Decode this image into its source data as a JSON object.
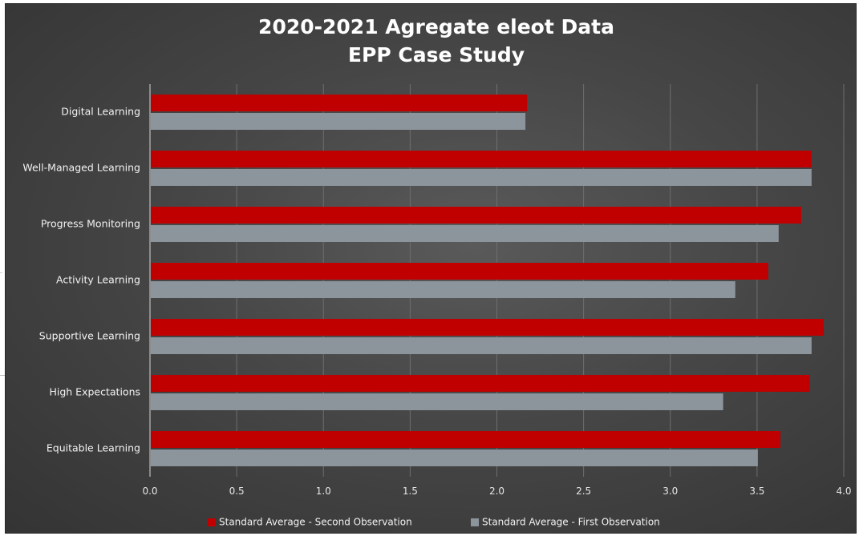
{
  "chart_data": {
    "type": "bar",
    "orientation": "horizontal",
    "title": "2020-2021 Agregate eleot Data\nEPP Case Study",
    "title_lines": [
      "2020-2021 Agregate eleot Data",
      "EPP Case Study"
    ],
    "categories": [
      "Digital Learning",
      "Well-Managed Learning",
      "Progress Monitoring",
      "Activity Learning",
      "Supportive Learning",
      "High Expectations",
      "Equitable Learning"
    ],
    "series": [
      {
        "name": "Standard Average - Second Observation",
        "color": "#c00000",
        "values": [
          2.17,
          3.81,
          3.75,
          3.56,
          3.88,
          3.8,
          3.63
        ]
      },
      {
        "name": "Standard Average - First Observation",
        "color": "#8c949c",
        "values": [
          2.16,
          3.81,
          3.62,
          3.37,
          3.81,
          3.3,
          3.5
        ]
      }
    ],
    "x_ticks": [
      "0.0",
      "0.5",
      "1.0",
      "1.5",
      "2.0",
      "2.5",
      "3.0",
      "3.5",
      "4.0"
    ],
    "xlim": [
      0,
      4
    ],
    "xlabel": "",
    "ylabel": "",
    "grid": true,
    "legend_position": "bottom"
  }
}
